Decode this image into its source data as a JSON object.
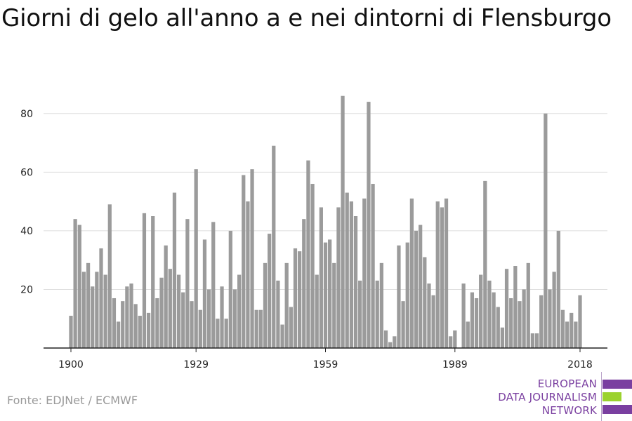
{
  "chart_data": {
    "type": "bar",
    "title": "Giorni di gelo all'anno a e nei dintorni di Flensburgo",
    "xlabel": "",
    "ylabel": "",
    "x": [
      1900,
      1901,
      1902,
      1903,
      1904,
      1905,
      1906,
      1907,
      1908,
      1909,
      1910,
      1911,
      1912,
      1913,
      1914,
      1915,
      1916,
      1917,
      1918,
      1919,
      1920,
      1921,
      1922,
      1923,
      1924,
      1925,
      1926,
      1927,
      1928,
      1929,
      1930,
      1931,
      1932,
      1933,
      1934,
      1935,
      1936,
      1937,
      1938,
      1939,
      1940,
      1941,
      1942,
      1943,
      1944,
      1945,
      1946,
      1947,
      1948,
      1949,
      1950,
      1951,
      1952,
      1953,
      1954,
      1955,
      1956,
      1957,
      1958,
      1959,
      1960,
      1961,
      1962,
      1963,
      1964,
      1965,
      1966,
      1967,
      1968,
      1969,
      1970,
      1971,
      1972,
      1973,
      1974,
      1975,
      1976,
      1977,
      1978,
      1979,
      1980,
      1981,
      1982,
      1983,
      1984,
      1985,
      1986,
      1987,
      1988,
      1989,
      1990,
      1991,
      1992,
      1993,
      1994,
      1995,
      1996,
      1997,
      1998,
      1999,
      2000,
      2001,
      2002,
      2003,
      2004,
      2005,
      2006,
      2007,
      2008,
      2009,
      2010,
      2011,
      2012,
      2013,
      2014,
      2015,
      2016,
      2017,
      2018
    ],
    "values": [
      11,
      44,
      42,
      26,
      29,
      21,
      26,
      34,
      25,
      49,
      17,
      9,
      16,
      21,
      22,
      15,
      11,
      46,
      12,
      45,
      17,
      24,
      35,
      27,
      53,
      25,
      19,
      44,
      16,
      61,
      13,
      37,
      20,
      43,
      10,
      21,
      10,
      40,
      20,
      25,
      59,
      50,
      61,
      13,
      13,
      29,
      39,
      69,
      23,
      8,
      29,
      14,
      34,
      33,
      44,
      64,
      56,
      25,
      48,
      36,
      37,
      29,
      48,
      86,
      53,
      50,
      45,
      23,
      51,
      84,
      56,
      23,
      29,
      6,
      2,
      4,
      35,
      16,
      36,
      51,
      40,
      42,
      31,
      22,
      18,
      50,
      48,
      51,
      4,
      6,
      0,
      22,
      9,
      19,
      17,
      25,
      57,
      23,
      19,
      14,
      7,
      27,
      17,
      28,
      16,
      20,
      29,
      5,
      5,
      18,
      80,
      20,
      26,
      40,
      13,
      9,
      12,
      9,
      18
    ],
    "xticks": [
      "1900",
      "1929",
      "1959",
      "1989",
      "2018"
    ],
    "yticks": [
      "20",
      "40",
      "60",
      "80"
    ],
    "ylim": [
      0,
      90
    ],
    "grid": true,
    "colors": {
      "bar": "#9b9b9b",
      "grid": "#dddddd",
      "axis": "#222222"
    }
  },
  "source": "Fonte: EDJNet / ECMWF",
  "logo": {
    "lines": [
      "EUROPEAN",
      "DATA JOURNALISM",
      "NETWORK"
    ],
    "colors": [
      "#7a3fa0",
      "#9bd22e",
      "#7a3fa0"
    ]
  }
}
